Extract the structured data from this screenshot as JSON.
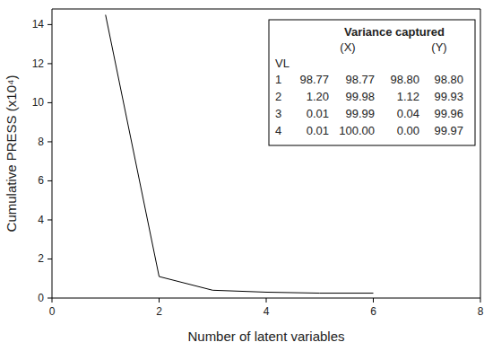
{
  "chart_data": {
    "type": "line",
    "x_label": "Number of latent variables",
    "y_label": "Cumulative PRESS (x10⁴)",
    "x": [
      1,
      2,
      3,
      4,
      5,
      6
    ],
    "series": [
      {
        "name": "Cumulative PRESS",
        "color": "#000000",
        "values": [
          14.5,
          1.1,
          0.4,
          0.3,
          0.25,
          0.25
        ]
      }
    ],
    "xlim": [
      0,
      8
    ],
    "xticks": [
      0,
      2,
      4,
      6,
      8
    ],
    "ylim": [
      0,
      14.8
    ],
    "yticks": [
      0,
      2,
      4,
      6,
      8,
      10,
      12,
      14
    ],
    "grid": false,
    "table": {
      "title": "Variance captured",
      "columns": [
        "(X)",
        "(Y)"
      ],
      "row_header": "VL",
      "rows": [
        [
          "1",
          "98.77",
          "98.77",
          "98.80",
          "98.80"
        ],
        [
          "2",
          "1.20",
          "99.98",
          "1.12",
          "99.93"
        ],
        [
          "3",
          "0.01",
          "99.99",
          "0.04",
          "99.96"
        ],
        [
          "4",
          "0.01",
          "100.00",
          "0.00",
          "99.97"
        ]
      ]
    }
  }
}
